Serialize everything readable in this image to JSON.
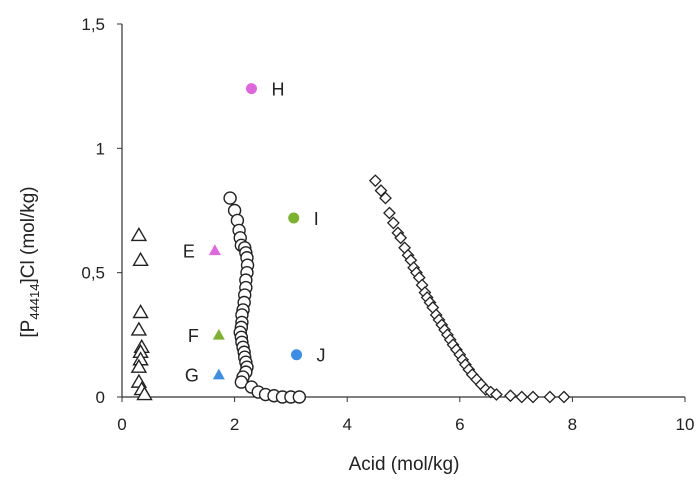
{
  "chart_data": {
    "type": "scatter",
    "xlabel": "Acid (mol/kg)",
    "ylabel_main": "[P",
    "ylabel_sub": "44414",
    "ylabel_tail": "]Cl (mol/kg)",
    "xlim": [
      0,
      10
    ],
    "ylim": [
      0,
      1.5
    ],
    "x_ticks": [
      "0",
      "2",
      "4",
      "6",
      "8",
      "10"
    ],
    "y_ticks": [
      "0",
      "0,5",
      "1",
      "1,5"
    ],
    "grid": false,
    "legend": "none",
    "series": [
      {
        "marker": "open-triangle",
        "color": "#222222",
        "points": [
          [
            0.3,
            0.65
          ],
          [
            0.33,
            0.55
          ],
          [
            0.33,
            0.34
          ],
          [
            0.3,
            0.27
          ],
          [
            0.35,
            0.2
          ],
          [
            0.33,
            0.18
          ],
          [
            0.33,
            0.15
          ],
          [
            0.3,
            0.12
          ],
          [
            0.3,
            0.06
          ],
          [
            0.35,
            0.03
          ],
          [
            0.4,
            0.01
          ]
        ]
      },
      {
        "marker": "open-circle",
        "color": "#222222",
        "points": [
          [
            1.92,
            0.8
          ],
          [
            2.0,
            0.75
          ],
          [
            2.05,
            0.71
          ],
          [
            2.08,
            0.67
          ],
          [
            2.1,
            0.64
          ],
          [
            2.12,
            0.61
          ],
          [
            2.18,
            0.6
          ],
          [
            2.2,
            0.58
          ],
          [
            2.22,
            0.56
          ],
          [
            2.23,
            0.53
          ],
          [
            2.22,
            0.5
          ],
          [
            2.2,
            0.47
          ],
          [
            2.2,
            0.44
          ],
          [
            2.18,
            0.41
          ],
          [
            2.17,
            0.38
          ],
          [
            2.15,
            0.35
          ],
          [
            2.13,
            0.33
          ],
          [
            2.13,
            0.3
          ],
          [
            2.12,
            0.28
          ],
          [
            2.1,
            0.26
          ],
          [
            2.12,
            0.24
          ],
          [
            2.13,
            0.22
          ],
          [
            2.15,
            0.2
          ],
          [
            2.17,
            0.18
          ],
          [
            2.18,
            0.16
          ],
          [
            2.2,
            0.14
          ],
          [
            2.22,
            0.12
          ],
          [
            2.2,
            0.1
          ],
          [
            2.15,
            0.08
          ],
          [
            2.12,
            0.06
          ],
          [
            2.3,
            0.04
          ],
          [
            2.42,
            0.02
          ],
          [
            2.55,
            0.01
          ],
          [
            2.7,
            0.005
          ],
          [
            2.85,
            0.0
          ],
          [
            3.0,
            0.0
          ],
          [
            3.15,
            0.0
          ]
        ]
      },
      {
        "marker": "open-diamond",
        "color": "#222222",
        "points": [
          [
            4.5,
            0.87
          ],
          [
            4.6,
            0.83
          ],
          [
            4.68,
            0.8
          ],
          [
            4.75,
            0.74
          ],
          [
            4.82,
            0.7
          ],
          [
            4.9,
            0.66
          ],
          [
            4.95,
            0.64
          ],
          [
            5.02,
            0.6
          ],
          [
            5.08,
            0.57
          ],
          [
            5.13,
            0.55
          ],
          [
            5.18,
            0.52
          ],
          [
            5.23,
            0.5
          ],
          [
            5.28,
            0.48
          ],
          [
            5.33,
            0.45
          ],
          [
            5.38,
            0.42
          ],
          [
            5.42,
            0.4
          ],
          [
            5.47,
            0.38
          ],
          [
            5.52,
            0.36
          ],
          [
            5.58,
            0.33
          ],
          [
            5.63,
            0.31
          ],
          [
            5.68,
            0.29
          ],
          [
            5.73,
            0.27
          ],
          [
            5.78,
            0.25
          ],
          [
            5.83,
            0.23
          ],
          [
            5.88,
            0.21
          ],
          [
            5.94,
            0.19
          ],
          [
            6.0,
            0.17
          ],
          [
            6.05,
            0.15
          ],
          [
            6.1,
            0.13
          ],
          [
            6.16,
            0.11
          ],
          [
            6.22,
            0.09
          ],
          [
            6.3,
            0.07
          ],
          [
            6.38,
            0.05
          ],
          [
            6.46,
            0.03
          ],
          [
            6.55,
            0.02
          ],
          [
            6.65,
            0.01
          ],
          [
            6.9,
            0.005
          ],
          [
            7.1,
            0.0
          ],
          [
            7.3,
            0.0
          ],
          [
            7.6,
            0.0
          ],
          [
            7.85,
            0.0
          ]
        ]
      }
    ],
    "labeled_points": [
      {
        "label": "E",
        "x": 1.65,
        "y": 0.59,
        "marker": "filled-triangle",
        "color": "#e066e0",
        "label_side": "left"
      },
      {
        "label": "F",
        "x": 1.72,
        "y": 0.25,
        "marker": "filled-triangle",
        "color": "#7cb32e",
        "label_side": "left"
      },
      {
        "label": "G",
        "x": 1.72,
        "y": 0.09,
        "marker": "filled-triangle",
        "color": "#3a8ee6",
        "label_side": "left"
      },
      {
        "label": "H",
        "x": 2.3,
        "y": 1.24,
        "marker": "filled-circle",
        "color": "#e066e0",
        "label_side": "right"
      },
      {
        "label": "I",
        "x": 3.05,
        "y": 0.72,
        "marker": "filled-circle",
        "color": "#7cb32e",
        "label_side": "right"
      },
      {
        "label": "J",
        "x": 3.1,
        "y": 0.17,
        "marker": "filled-circle",
        "color": "#3a8ee6",
        "label_side": "right"
      }
    ]
  }
}
